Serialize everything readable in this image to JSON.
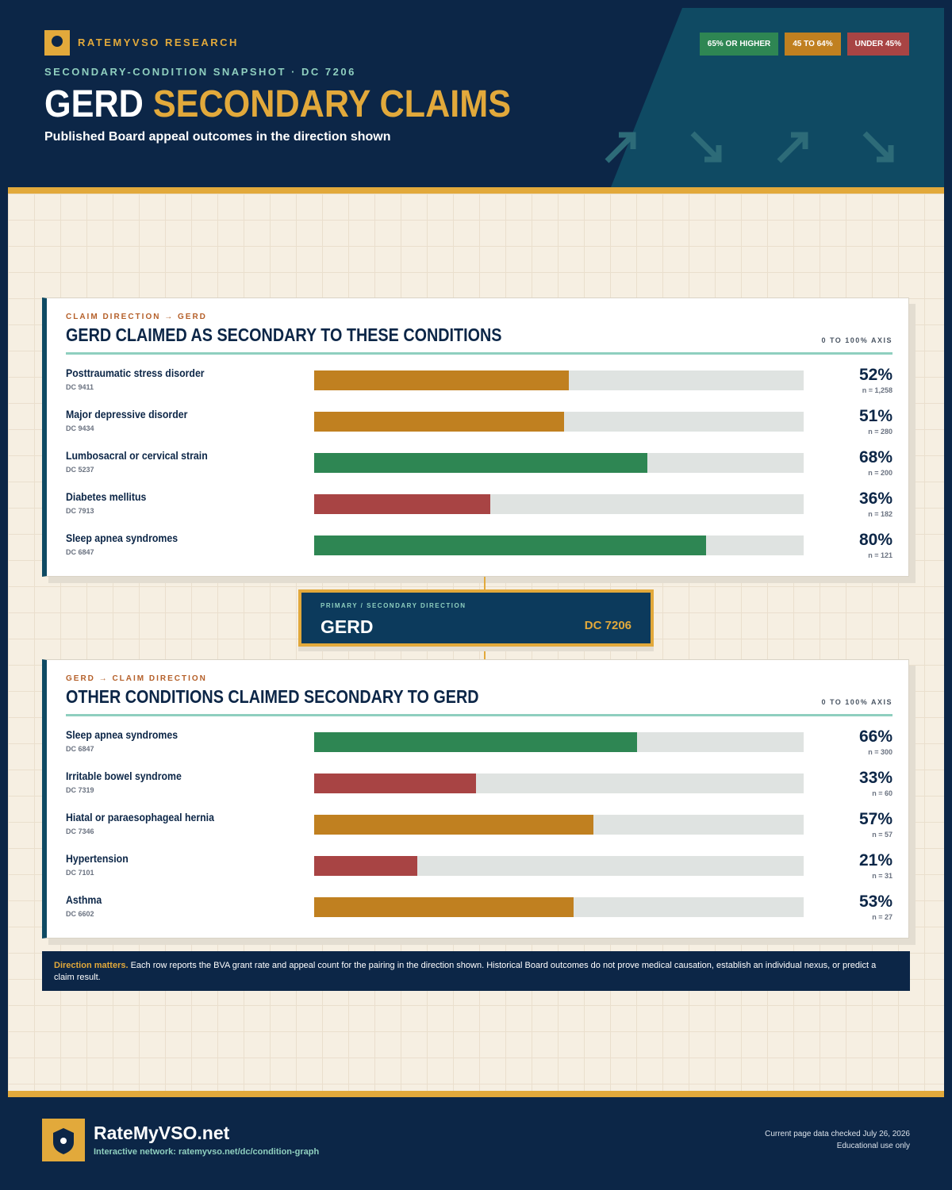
{
  "header": {
    "brand": "RATEMYVSO RESEARCH",
    "kicker": "SECONDARY-CONDITION SNAPSHOT · DC 7206",
    "title_main": "GERD",
    "title_accent": "SECONDARY CLAIMS",
    "subtitle": "Published Board appeal outcomes in the direction shown"
  },
  "legend": [
    {
      "label": "65% OR HIGHER",
      "color": "#2e8653"
    },
    {
      "label": "45 TO 64%",
      "color": "#c08020"
    },
    {
      "label": "UNDER 45%",
      "color": "#a84444"
    }
  ],
  "chart_data": [
    {
      "type": "bar",
      "orientation": "horizontal",
      "subtitle": "CLAIM DIRECTION → GERD",
      "title": "GERD CLAIMED AS SECONDARY TO THESE CONDITIONS",
      "axis_note": "0 TO 100% AXIS",
      "categories": [
        "Posttraumatic stress disorder",
        "Major depressive disorder",
        "Lumbosacral or cervical strain",
        "Diabetes mellitus",
        "Sleep apnea syndromes"
      ],
      "codes": [
        "DC 9411",
        "DC 9434",
        "DC 5237",
        "DC 7913",
        "DC 6847"
      ],
      "values": [
        52,
        51,
        68,
        36,
        80
      ],
      "value_labels": [
        "52%",
        "51%",
        "68%",
        "36%",
        "80%"
      ],
      "counts": [
        "n = 1,258",
        "n = 280",
        "n = 200",
        "n = 182",
        "n = 121"
      ],
      "colors": [
        "#c08020",
        "#c08020",
        "#2e8653",
        "#a84444",
        "#2e8653"
      ],
      "xlim": [
        0,
        100
      ]
    },
    {
      "type": "bar",
      "orientation": "horizontal",
      "subtitle": "GERD → CLAIM DIRECTION",
      "title": "OTHER CONDITIONS CLAIMED SECONDARY TO GERD",
      "axis_note": "0 TO 100% AXIS",
      "categories": [
        "Sleep apnea syndromes",
        "Irritable bowel syndrome",
        "Hiatal or paraesophageal hernia",
        "Hypertension",
        "Asthma"
      ],
      "codes": [
        "DC 6847",
        "DC 7319",
        "DC 7346",
        "DC 7101",
        "DC 6602"
      ],
      "values": [
        66,
        33,
        57,
        21,
        53
      ],
      "value_labels": [
        "66%",
        "33%",
        "57%",
        "21%",
        "53%"
      ],
      "counts": [
        "n = 300",
        "n = 60",
        "n = 57",
        "n = 31",
        "n = 27"
      ],
      "colors": [
        "#2e8653",
        "#a84444",
        "#c08020",
        "#a84444",
        "#c08020"
      ],
      "xlim": [
        0,
        100
      ]
    }
  ],
  "center": {
    "kicker": "PRIMARY / SECONDARY DIRECTION",
    "name": "GERD",
    "code": "DC 7206"
  },
  "note": {
    "lead": "Direction matters.",
    "text": "Each row reports the BVA grant rate and appeal count for the pairing in the direction shown. Historical Board outcomes do not prove medical causation, establish an individual nexus, or predict a claim result."
  },
  "footer": {
    "site": "RateMyVSO.net",
    "link": "Interactive network: ratemyvso.net/dc/condition-graph",
    "checked": "Current page data checked July 26, 2026",
    "use": "Educational use only"
  }
}
